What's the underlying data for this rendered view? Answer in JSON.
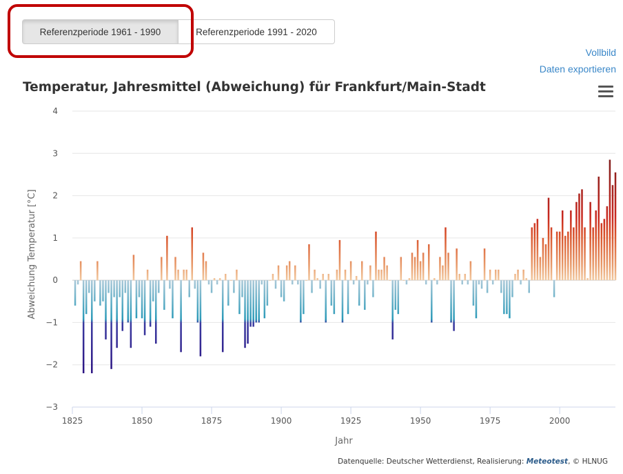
{
  "buttons": {
    "ref1961": "Referenzperiode 1961 - 1990",
    "ref1991": "Referenzperiode 1991 - 2020"
  },
  "links": {
    "fullscreen": "Vollbild",
    "export": "Daten exportieren"
  },
  "credits": {
    "prefix": "Datenquelle: Deutscher Wetterdienst, Realisierung: ",
    "brand": "Meteotest",
    "suffix": ", © HLNUG"
  },
  "icons": {
    "menu": "hamburger-menu-icon"
  },
  "colors": {
    "grid": "#e6e6e6",
    "link": "#3a87c8",
    "highlight": "#c00000",
    "warm_low": "#f2c9a0",
    "warm_high": "#c9281f",
    "warm_extreme": "#7a1e1e",
    "cold_low": "#a9c8d8",
    "cold_mid": "#2a9ab8",
    "cold_extreme": "#2a1080"
  },
  "chart_data": {
    "type": "bar",
    "title": "Temperatur, Jahresmittel (Abweichung) für Frankfurt/Main-Stadt",
    "xlabel": "Jahr",
    "ylabel": "Abweichung Temperatur [°C]",
    "xlim": [
      1825,
      2020
    ],
    "ylim": [
      -3,
      4
    ],
    "xticks": [
      1825,
      1850,
      1875,
      1900,
      1925,
      1950,
      1975,
      2000
    ],
    "yticks": [
      -3,
      -2,
      -1,
      0,
      1,
      2,
      3,
      4
    ],
    "grid": true,
    "legend": "none",
    "x_start": 1826,
    "values": [
      -0.6,
      -0.1,
      0.45,
      -2.2,
      -0.8,
      -0.3,
      -2.2,
      -0.5,
      0.45,
      -0.6,
      -0.5,
      -1.4,
      -0.3,
      -2.1,
      -0.4,
      -1.6,
      -0.4,
      -1.2,
      -0.3,
      -1.0,
      -1.6,
      0.6,
      -0.9,
      -0.4,
      -0.9,
      -1.3,
      0.25,
      -1.1,
      -0.5,
      -1.5,
      -0.3,
      0.55,
      -0.7,
      1.05,
      -0.2,
      -0.9,
      0.55,
      0.25,
      -1.7,
      0.25,
      0.25,
      -0.4,
      1.25,
      -0.2,
      -1.0,
      -1.8,
      0.65,
      0.45,
      -0.1,
      -0.3,
      0.05,
      -0.1,
      0.05,
      -1.7,
      0.15,
      -0.6,
      0.0,
      -0.3,
      0.25,
      -0.8,
      -0.4,
      -1.6,
      -1.5,
      -1.1,
      -1.1,
      -1.0,
      -1.0,
      -0.1,
      -0.9,
      -0.6,
      0.0,
      0.15,
      -0.2,
      0.35,
      -0.4,
      -0.5,
      0.35,
      0.45,
      -0.1,
      0.35,
      -0.1,
      -1.0,
      -0.8,
      0.0,
      0.85,
      -0.3,
      0.25,
      0.05,
      -0.2,
      0.15,
      -1.0,
      0.15,
      -0.6,
      -0.8,
      0.25,
      0.95,
      -1.0,
      0.25,
      -0.8,
      0.45,
      -0.1,
      0.1,
      -0.6,
      0.45,
      -0.7,
      -0.1,
      0.35,
      -0.4,
      1.15,
      0.25,
      0.25,
      0.55,
      0.35,
      0.0,
      -1.4,
      -0.7,
      -0.8,
      0.55,
      0.0,
      -0.1,
      0.05,
      0.65,
      0.55,
      0.95,
      0.45,
      0.65,
      -0.1,
      0.85,
      -1.0,
      0.05,
      -0.1,
      0.55,
      0.35,
      1.25,
      0.65,
      -1.0,
      -1.2,
      0.75,
      0.15,
      -0.1,
      0.15,
      -0.1,
      0.45,
      -0.6,
      -0.9,
      -0.1,
      -0.2,
      0.75,
      -0.3,
      0.25,
      -0.1,
      0.25,
      0.25,
      -0.3,
      -0.8,
      -0.8,
      -0.9,
      -0.4,
      0.15,
      0.25,
      -0.1,
      0.25,
      0.05,
      -0.3,
      1.25,
      1.35,
      1.45,
      0.55,
      1.0,
      0.85,
      1.95,
      1.25,
      -0.4,
      1.15,
      1.15,
      1.65,
      1.05,
      1.15,
      1.65,
      1.25,
      1.85,
      2.05,
      2.15,
      1.25,
      0.05,
      1.85,
      1.25,
      1.65,
      2.45,
      1.35,
      1.45,
      1.75,
      2.85,
      2.25,
      2.55
    ]
  }
}
